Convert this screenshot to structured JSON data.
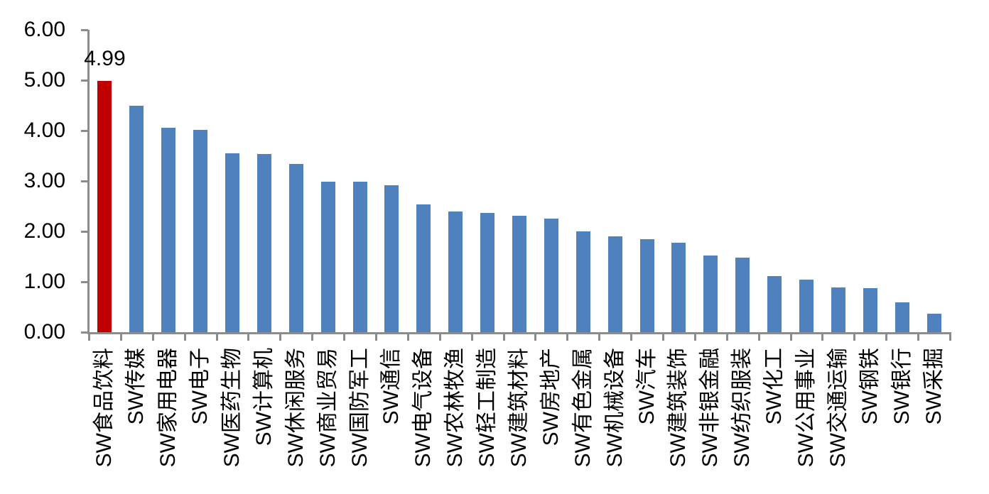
{
  "chart_data": {
    "type": "bar",
    "title": "",
    "xlabel": "",
    "ylabel": "",
    "grid": false,
    "legend": null,
    "ylim": [
      0,
      6
    ],
    "y_tick_step": 1,
    "y_ticks": [
      "0.00",
      "1.00",
      "2.00",
      "3.00",
      "4.00",
      "5.00",
      "6.00"
    ],
    "categories": [
      "SW食品饮料",
      "SW传媒",
      "SW家用电器",
      "SW电子",
      "SW医药生物",
      "SW计算机",
      "SW休闲服务",
      "SW商业贸易",
      "SW国防军工",
      "SW通信",
      "SW电气设备",
      "SW农林牧渔",
      "SW轻工制造",
      "SW建筑材料",
      "SW房地产",
      "SW有色金属",
      "SW机械设备",
      "SW汽车",
      "SW建筑装饰",
      "SW非银金融",
      "SW纺织服装",
      "SW化工",
      "SW公用事业",
      "SW交通运输",
      "SW钢铁",
      "SW银行",
      "SW采掘"
    ],
    "values": [
      4.99,
      4.5,
      4.06,
      4.01,
      3.55,
      3.53,
      3.34,
      2.98,
      2.98,
      2.92,
      2.54,
      2.4,
      2.36,
      2.31,
      2.25,
      2.0,
      1.9,
      1.85,
      1.78,
      1.52,
      1.48,
      1.11,
      1.04,
      0.89,
      0.87,
      0.59,
      0.36
    ],
    "highlight_index": 0,
    "data_labels": [
      {
        "index": 0,
        "text": "4.99"
      }
    ],
    "colors": {
      "bar": "#4F81BD",
      "highlight": "#C00000",
      "axis": "#8C8C8C",
      "text": "#000000"
    }
  }
}
